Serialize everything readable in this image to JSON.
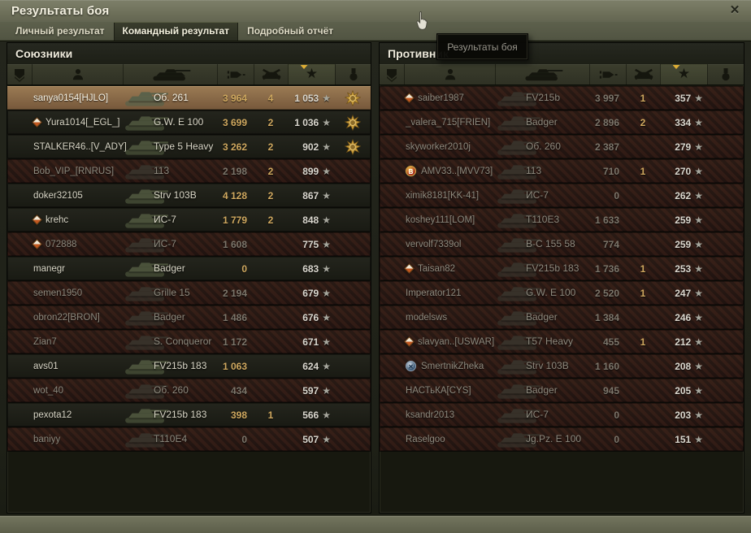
{
  "window": {
    "title": "Результаты боя",
    "close_label": "✕"
  },
  "tabs": [
    {
      "label": "Личный результат",
      "active": false
    },
    {
      "label": "Командный результат",
      "active": true
    },
    {
      "label": "Подробный отчёт",
      "active": false
    }
  ],
  "tooltip": {
    "text": "Результаты боя"
  },
  "columns": {
    "icons": [
      "clan",
      "player",
      "tank",
      "damage",
      "kills",
      "xp",
      "medal"
    ],
    "sorted_by": "xp"
  },
  "teams": [
    {
      "name": "Союзники",
      "players": [
        {
          "name": "sanya0154[HJLO]",
          "tank": "Об. 261",
          "damage": "3 964",
          "kills": "4",
          "xp": "1 053",
          "status": "self",
          "emblem": null,
          "medal": true
        },
        {
          "name": "Yura1014[_EGL_]",
          "tank": "G.W. E 100",
          "damage": "3 699",
          "kills": "2",
          "xp": "1 036",
          "status": "alive",
          "emblem": "diamond",
          "medal": true
        },
        {
          "name": "STALKER46..[V_ADY]",
          "tank": "Type 5 Heavy",
          "damage": "3 262",
          "kills": "2",
          "xp": "902",
          "status": "alive",
          "emblem": null,
          "medal": true
        },
        {
          "name": "Bob_VIP_[RNRUS]",
          "tank": "113",
          "damage": "2 198",
          "kills": "2",
          "xp": "899",
          "status": "dead",
          "emblem": null,
          "medal": false
        },
        {
          "name": "doker32105",
          "tank": "Strv 103B",
          "damage": "4 128",
          "kills": "2",
          "xp": "867",
          "status": "alive",
          "emblem": null,
          "medal": false
        },
        {
          "name": "krehc",
          "tank": "ИС-7",
          "damage": "1 779",
          "kills": "2",
          "xp": "848",
          "status": "alive",
          "emblem": "diamond",
          "medal": false
        },
        {
          "name": "072888",
          "tank": "ИС-7",
          "damage": "1 608",
          "kills": "",
          "xp": "775",
          "status": "dead",
          "emblem": "diamond",
          "medal": false
        },
        {
          "name": "manegr",
          "tank": "Badger",
          "damage": "0",
          "kills": "",
          "xp": "683",
          "status": "alive",
          "emblem": null,
          "medal": false
        },
        {
          "name": "semen1950",
          "tank": "Grille 15",
          "damage": "2 194",
          "kills": "",
          "xp": "679",
          "status": "dead",
          "emblem": null,
          "medal": false
        },
        {
          "name": "obron22[BRON]",
          "tank": "Badger",
          "damage": "1 486",
          "kills": "",
          "xp": "676",
          "status": "dead",
          "emblem": null,
          "medal": false
        },
        {
          "name": "Zian7",
          "tank": "S. Conqueror",
          "damage": "1 172",
          "kills": "",
          "xp": "671",
          "status": "dead",
          "emblem": null,
          "medal": false
        },
        {
          "name": "avs01",
          "tank": "FV215b 183",
          "damage": "1 063",
          "kills": "",
          "xp": "624",
          "status": "alive",
          "emblem": null,
          "medal": false
        },
        {
          "name": "wot_40",
          "tank": "Об. 260",
          "damage": "434",
          "kills": "",
          "xp": "597",
          "status": "dead",
          "emblem": null,
          "medal": false
        },
        {
          "name": "pexota12",
          "tank": "FV215b 183",
          "damage": "398",
          "kills": "1",
          "xp": "566",
          "status": "alive",
          "emblem": null,
          "medal": false
        },
        {
          "name": "baniyy",
          "tank": "T110E4",
          "damage": "0",
          "kills": "",
          "xp": "507",
          "status": "dead",
          "emblem": null,
          "medal": false
        }
      ]
    },
    {
      "name": "Противник",
      "players": [
        {
          "name": "saiber1987",
          "tank": "FV215b",
          "damage": "3 997",
          "kills": "1",
          "xp": "357",
          "status": "dead",
          "emblem": "diamond",
          "medal": false
        },
        {
          "name": "_valera_715[FRIEN]",
          "tank": "Badger",
          "damage": "2 896",
          "kills": "2",
          "xp": "334",
          "status": "dead",
          "emblem": null,
          "medal": false
        },
        {
          "name": "skyworker2010j",
          "tank": "Об. 260",
          "damage": "2 387",
          "kills": "",
          "xp": "279",
          "status": "dead",
          "emblem": null,
          "medal": false
        },
        {
          "name": "AMV33..[MVV73]",
          "tank": "113",
          "damage": "710",
          "kills": "1",
          "xp": "270",
          "status": "dead",
          "emblem": "round-red",
          "medal": false
        },
        {
          "name": "ximik8181[KK-41]",
          "tank": "ИС-7",
          "damage": "0",
          "kills": "",
          "xp": "262",
          "status": "dead",
          "emblem": null,
          "medal": false
        },
        {
          "name": "koshey111[LOM]",
          "tank": "T110E3",
          "damage": "1 633",
          "kills": "",
          "xp": "259",
          "status": "dead",
          "emblem": null,
          "medal": false
        },
        {
          "name": "vervolf7339ol",
          "tank": "B-C 155 58",
          "damage": "774",
          "kills": "",
          "xp": "259",
          "status": "dead",
          "emblem": null,
          "medal": false
        },
        {
          "name": "Taisan82",
          "tank": "FV215b 183",
          "damage": "1 736",
          "kills": "1",
          "xp": "253",
          "status": "dead",
          "emblem": "diamond",
          "medal": false
        },
        {
          "name": "Imperator121",
          "tank": "G.W. E 100",
          "damage": "2 520",
          "kills": "1",
          "xp": "247",
          "status": "dead",
          "emblem": null,
          "medal": false
        },
        {
          "name": "modelsws",
          "tank": "Badger",
          "damage": "1 384",
          "kills": "",
          "xp": "246",
          "status": "dead",
          "emblem": null,
          "medal": false
        },
        {
          "name": "slavyan..[USWAR]",
          "tank": "T57 Heavy",
          "damage": "455",
          "kills": "1",
          "xp": "212",
          "status": "dead",
          "emblem": "diamond",
          "medal": false
        },
        {
          "name": "SmertnikZheka",
          "tank": "Strv 103B",
          "damage": "1 160",
          "kills": "",
          "xp": "208",
          "status": "dead",
          "emblem": "round-blue",
          "medal": false
        },
        {
          "name": "НАСТьКА[CYS]",
          "tank": "Badger",
          "damage": "945",
          "kills": "",
          "xp": "205",
          "status": "dead",
          "emblem": null,
          "medal": false
        },
        {
          "name": "ksandr2013",
          "tank": "ИС-7",
          "damage": "0",
          "kills": "",
          "xp": "203",
          "status": "dead",
          "emblem": null,
          "medal": false
        },
        {
          "name": "Raselgoo",
          "tank": "Jg.Pz. E 100",
          "damage": "0",
          "kills": "",
          "xp": "151",
          "status": "dead",
          "emblem": null,
          "medal": false
        }
      ]
    }
  ],
  "colors": {
    "gold_number": "#cfa85f",
    "alive_text": "#d9d6c6",
    "dead_text": "#8d897d",
    "xp_text": "#dad7ce",
    "sort_arrow": "#dfae35",
    "tooltip_text": "#9a978c"
  }
}
